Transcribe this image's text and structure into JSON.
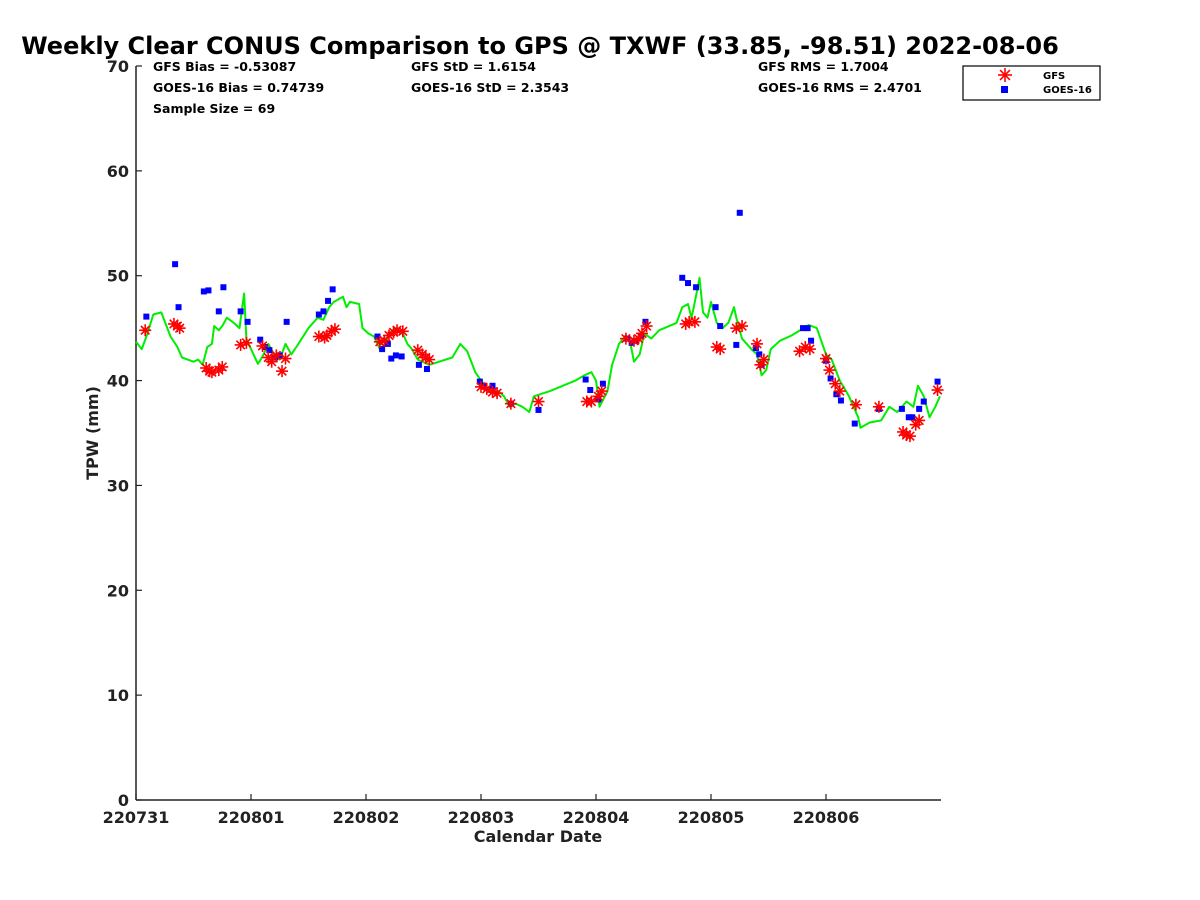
{
  "chart_data": {
    "type": "scatter",
    "title": "Weekly Clear CONUS Comparison to GPS @ TXWF (33.85, -98.51) 2022-08-06",
    "xlabel": "Calendar Date",
    "ylabel": "TPW (mm)",
    "ylim": [
      0,
      70
    ],
    "xlim": [
      0,
      7
    ],
    "yticks": [
      "0",
      "10",
      "20",
      "30",
      "40",
      "50",
      "60",
      "70"
    ],
    "x_tick_labels": [
      "220731",
      "220801",
      "220802",
      "220803",
      "220804",
      "220805",
      "220806"
    ],
    "x_ticks_at": [
      0,
      1,
      2,
      3,
      4,
      5,
      6
    ],
    "stats": {
      "gfs_bias": "GFS Bias = -0.53087",
      "goes_bias": "GOES-16 Bias = 0.74739",
      "sample_size": "Sample Size = 69",
      "gfs_std": "GFS StD = 1.6154",
      "goes_std": "GOES-16 StD = 2.3543",
      "gfs_rms": "GFS RMS = 1.7004",
      "goes_rms": "GOES-16 RMS = 2.4701"
    },
    "legend_placement": "top-right",
    "grid": false,
    "series": [
      {
        "name": "GFS",
        "marker": "asterisk",
        "color": "#ff0000",
        "points": [
          [
            0.08,
            44.8
          ],
          [
            0.33,
            45.4
          ],
          [
            0.36,
            45.2
          ],
          [
            0.38,
            45.0
          ],
          [
            0.61,
            41.2
          ],
          [
            0.64,
            40.9
          ],
          [
            0.66,
            40.8
          ],
          [
            0.72,
            41.0
          ],
          [
            0.75,
            41.3
          ],
          [
            0.91,
            43.4
          ],
          [
            0.96,
            43.6
          ],
          [
            1.1,
            43.3
          ],
          [
            1.15,
            42.2
          ],
          [
            1.18,
            41.8
          ],
          [
            1.22,
            42.4
          ],
          [
            1.27,
            40.9
          ],
          [
            1.3,
            42.1
          ],
          [
            1.59,
            44.2
          ],
          [
            1.64,
            44.1
          ],
          [
            1.66,
            44.3
          ],
          [
            1.7,
            44.7
          ],
          [
            1.73,
            44.9
          ],
          [
            2.12,
            43.7
          ],
          [
            2.16,
            43.8
          ],
          [
            2.2,
            44.3
          ],
          [
            2.24,
            44.6
          ],
          [
            2.27,
            44.8
          ],
          [
            2.32,
            44.7
          ],
          [
            2.45,
            42.9
          ],
          [
            2.49,
            42.5
          ],
          [
            2.52,
            42.2
          ],
          [
            2.55,
            42.0
          ],
          [
            3.0,
            39.4
          ],
          [
            3.05,
            39.2
          ],
          [
            3.1,
            38.9
          ],
          [
            3.14,
            38.8
          ],
          [
            3.26,
            37.8
          ],
          [
            3.5,
            38.0
          ],
          [
            3.92,
            38.0
          ],
          [
            3.96,
            38.0
          ],
          [
            4.02,
            38.5
          ],
          [
            4.05,
            39.0
          ],
          [
            4.26,
            44.0
          ],
          [
            4.33,
            43.8
          ],
          [
            4.37,
            44.0
          ],
          [
            4.4,
            44.5
          ],
          [
            4.44,
            45.2
          ],
          [
            4.78,
            45.4
          ],
          [
            4.81,
            45.6
          ],
          [
            4.86,
            45.6
          ],
          [
            5.05,
            43.2
          ],
          [
            5.08,
            43.0
          ],
          [
            5.22,
            45.0
          ],
          [
            5.27,
            45.2
          ],
          [
            5.4,
            43.5
          ],
          [
            5.43,
            41.5
          ],
          [
            5.46,
            42.0
          ],
          [
            5.77,
            42.8
          ],
          [
            5.82,
            43.2
          ],
          [
            5.86,
            43.0
          ],
          [
            6.0,
            42.1
          ],
          [
            6.03,
            41.0
          ],
          [
            6.08,
            39.7
          ],
          [
            6.12,
            39.0
          ],
          [
            6.26,
            37.7
          ],
          [
            6.46,
            37.5
          ],
          [
            6.67,
            35.1
          ],
          [
            6.7,
            34.8
          ],
          [
            6.73,
            34.7
          ],
          [
            6.78,
            35.8
          ],
          [
            6.81,
            36.2
          ],
          [
            6.97,
            39.1
          ]
        ]
      },
      {
        "name": "GOES-16",
        "marker": "square",
        "color": "#0000ff",
        "points": [
          [
            0.09,
            46.1
          ],
          [
            0.34,
            51.1
          ],
          [
            0.37,
            47.0
          ],
          [
            0.59,
            48.5
          ],
          [
            0.63,
            48.6
          ],
          [
            0.72,
            46.6
          ],
          [
            0.76,
            48.9
          ],
          [
            0.91,
            46.6
          ],
          [
            0.97,
            45.6
          ],
          [
            1.08,
            43.9
          ],
          [
            1.12,
            43.2
          ],
          [
            1.16,
            42.9
          ],
          [
            1.21,
            42.2
          ],
          [
            1.25,
            42.4
          ],
          [
            1.31,
            45.6
          ],
          [
            1.59,
            46.3
          ],
          [
            1.63,
            46.6
          ],
          [
            1.67,
            47.6
          ],
          [
            1.71,
            48.7
          ],
          [
            2.1,
            44.2
          ],
          [
            2.14,
            43.0
          ],
          [
            2.19,
            43.5
          ],
          [
            2.22,
            42.1
          ],
          [
            2.26,
            42.4
          ],
          [
            2.31,
            42.3
          ],
          [
            2.46,
            41.5
          ],
          [
            2.53,
            41.1
          ],
          [
            2.99,
            39.9
          ],
          [
            3.03,
            39.5
          ],
          [
            3.1,
            39.5
          ],
          [
            3.26,
            37.8
          ],
          [
            3.5,
            37.2
          ],
          [
            3.91,
            40.1
          ],
          [
            3.95,
            39.1
          ],
          [
            4.02,
            38.2
          ],
          [
            4.06,
            39.7
          ],
          [
            4.27,
            44.0
          ],
          [
            4.31,
            43.6
          ],
          [
            4.35,
            43.8
          ],
          [
            4.39,
            44.2
          ],
          [
            4.43,
            45.6
          ],
          [
            4.75,
            49.8
          ],
          [
            4.8,
            49.3
          ],
          [
            4.87,
            48.9
          ],
          [
            5.04,
            47.0
          ],
          [
            5.08,
            45.2
          ],
          [
            5.22,
            43.4
          ],
          [
            5.25,
            56.0
          ],
          [
            5.39,
            43.1
          ],
          [
            5.42,
            42.5
          ],
          [
            5.44,
            41.5
          ],
          [
            5.8,
            45.0
          ],
          [
            5.84,
            45.0
          ],
          [
            5.87,
            43.8
          ],
          [
            6.0,
            41.9
          ],
          [
            6.04,
            40.2
          ],
          [
            6.09,
            38.7
          ],
          [
            6.13,
            38.1
          ],
          [
            6.25,
            35.9
          ],
          [
            6.46,
            37.3
          ],
          [
            6.66,
            37.3
          ],
          [
            6.72,
            36.5
          ],
          [
            6.75,
            36.5
          ],
          [
            6.81,
            37.3
          ],
          [
            6.85,
            38.0
          ],
          [
            6.97,
            39.9
          ]
        ]
      },
      {
        "name": "",
        "marker": "line",
        "color": "#00ee00",
        "points": [
          [
            0.0,
            43.7
          ],
          [
            0.05,
            43.0
          ],
          [
            0.1,
            44.5
          ],
          [
            0.15,
            46.3
          ],
          [
            0.22,
            46.5
          ],
          [
            0.3,
            44.2
          ],
          [
            0.36,
            43.2
          ],
          [
            0.4,
            42.2
          ],
          [
            0.5,
            41.8
          ],
          [
            0.54,
            42.0
          ],
          [
            0.58,
            41.5
          ],
          [
            0.62,
            43.2
          ],
          [
            0.66,
            43.5
          ],
          [
            0.68,
            45.2
          ],
          [
            0.72,
            44.8
          ],
          [
            0.75,
            45.2
          ],
          [
            0.79,
            46.0
          ],
          [
            0.85,
            45.5
          ],
          [
            0.9,
            45.0
          ],
          [
            0.94,
            48.3
          ],
          [
            0.96,
            44.0
          ],
          [
            1.0,
            43.0
          ],
          [
            1.06,
            41.6
          ],
          [
            1.1,
            42.3
          ],
          [
            1.15,
            43.5
          ],
          [
            1.2,
            42.5
          ],
          [
            1.25,
            42.0
          ],
          [
            1.3,
            43.5
          ],
          [
            1.35,
            42.5
          ],
          [
            1.4,
            43.3
          ],
          [
            1.5,
            45.0
          ],
          [
            1.58,
            46.0
          ],
          [
            1.63,
            45.8
          ],
          [
            1.68,
            47.0
          ],
          [
            1.72,
            47.5
          ],
          [
            1.8,
            48.0
          ],
          [
            1.83,
            47.0
          ],
          [
            1.86,
            47.5
          ],
          [
            1.94,
            47.3
          ],
          [
            1.97,
            45.0
          ],
          [
            2.02,
            44.5
          ],
          [
            2.07,
            44.2
          ],
          [
            2.12,
            43.0
          ],
          [
            2.17,
            43.5
          ],
          [
            2.2,
            44.5
          ],
          [
            2.26,
            45.0
          ],
          [
            2.32,
            44.5
          ],
          [
            2.36,
            43.5
          ],
          [
            2.4,
            43.0
          ],
          [
            2.45,
            42.0
          ],
          [
            2.55,
            41.5
          ],
          [
            2.75,
            42.2
          ],
          [
            2.82,
            43.5
          ],
          [
            2.88,
            42.8
          ],
          [
            2.95,
            40.8
          ],
          [
            3.0,
            40.0
          ],
          [
            3.08,
            39.0
          ],
          [
            3.15,
            39.0
          ],
          [
            3.2,
            38.5
          ],
          [
            3.25,
            37.5
          ],
          [
            3.3,
            37.8
          ],
          [
            3.36,
            37.5
          ],
          [
            3.42,
            37.0
          ],
          [
            3.46,
            38.5
          ],
          [
            3.6,
            39.0
          ],
          [
            3.82,
            40.0
          ],
          [
            3.9,
            40.5
          ],
          [
            3.96,
            40.8
          ],
          [
            4.0,
            40.0
          ],
          [
            4.03,
            37.5
          ],
          [
            4.1,
            39.0
          ],
          [
            4.14,
            41.5
          ],
          [
            4.2,
            43.5
          ],
          [
            4.26,
            44.3
          ],
          [
            4.3,
            43.5
          ],
          [
            4.33,
            41.8
          ],
          [
            4.38,
            42.5
          ],
          [
            4.42,
            44.5
          ],
          [
            4.48,
            44.0
          ],
          [
            4.55,
            44.8
          ],
          [
            4.7,
            45.5
          ],
          [
            4.75,
            47.0
          ],
          [
            4.8,
            47.3
          ],
          [
            4.83,
            46.0
          ],
          [
            4.85,
            47.0
          ],
          [
            4.9,
            49.8
          ],
          [
            4.93,
            46.5
          ],
          [
            4.97,
            46.0
          ],
          [
            5.0,
            47.5
          ],
          [
            5.05,
            45.5
          ],
          [
            5.1,
            45.0
          ],
          [
            5.15,
            45.5
          ],
          [
            5.2,
            47.0
          ],
          [
            5.22,
            46.0
          ],
          [
            5.27,
            44.0
          ],
          [
            5.35,
            43.0
          ],
          [
            5.4,
            42.5
          ],
          [
            5.44,
            40.5
          ],
          [
            5.48,
            41.0
          ],
          [
            5.52,
            43.0
          ],
          [
            5.6,
            43.8
          ],
          [
            5.7,
            44.3
          ],
          [
            5.85,
            45.3
          ],
          [
            5.92,
            45.0
          ],
          [
            6.0,
            42.5
          ],
          [
            6.05,
            42.0
          ],
          [
            6.12,
            40.0
          ],
          [
            6.2,
            38.5
          ],
          [
            6.28,
            36.5
          ],
          [
            6.3,
            35.5
          ],
          [
            6.38,
            36.0
          ],
          [
            6.48,
            36.2
          ],
          [
            6.55,
            37.5
          ],
          [
            6.62,
            37.0
          ],
          [
            6.7,
            38.0
          ],
          [
            6.76,
            37.5
          ],
          [
            6.8,
            39.5
          ],
          [
            6.85,
            38.5
          ],
          [
            6.9,
            36.5
          ],
          [
            6.95,
            37.5
          ],
          [
            6.99,
            38.5
          ]
        ]
      }
    ]
  }
}
